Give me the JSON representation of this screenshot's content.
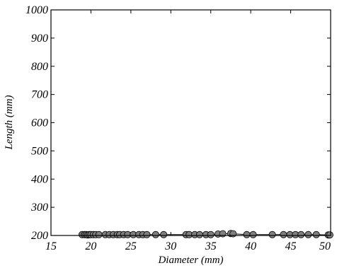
{
  "chart_data": {
    "type": "scatter",
    "title": "",
    "xlabel": "Diameter (mm)",
    "ylabel": "Length (mm)",
    "xlim": [
      15,
      50
    ],
    "ylim": [
      200,
      1000
    ],
    "xticks": [
      15,
      20,
      25,
      30,
      35,
      40,
      45,
      50
    ],
    "yticks": [
      200,
      300,
      400,
      500,
      600,
      700,
      800,
      900,
      1000
    ],
    "grid": false,
    "point_color": "#808080",
    "line_color": "#000000",
    "series": [
      {
        "x": [
          18.9,
          19.2,
          19.4,
          19.6,
          19.8,
          20.0,
          20.3,
          20.6,
          21.0,
          21.8,
          22.3,
          22.8,
          23.3,
          23.6,
          24.1,
          24.6,
          25.3,
          26.0,
          26.5,
          27.0,
          28.1,
          29.1,
          31.9,
          32.3,
          33.0,
          33.6,
          34.4,
          35.0,
          35.9,
          36.5,
          37.5,
          37.8,
          39.5,
          40.3,
          42.7,
          44.1,
          44.9,
          45.6,
          46.3,
          47.2,
          48.2,
          49.7,
          49.9
        ],
        "y": [
          203,
          203,
          203,
          202,
          203,
          203,
          203,
          203,
          203,
          203,
          203,
          203,
          203,
          203,
          203,
          203,
          203,
          203,
          203,
          203,
          203,
          203,
          203,
          203,
          203,
          203,
          203,
          203,
          205,
          206,
          207,
          206,
          203,
          203,
          203,
          203,
          203,
          203,
          203,
          203,
          203,
          202,
          202
        ]
      }
    ]
  }
}
